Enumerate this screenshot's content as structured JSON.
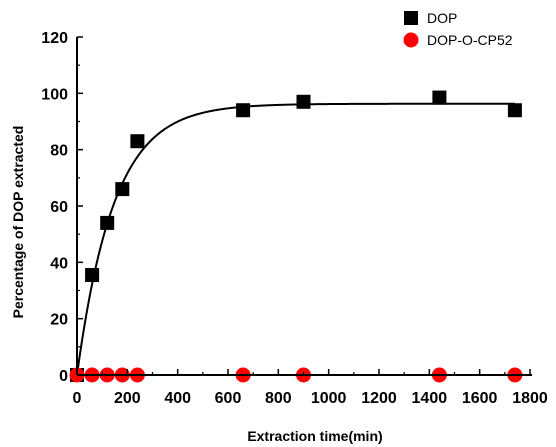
{
  "chart_data": {
    "type": "scatter",
    "title": "",
    "xlabel": "Extraction time(min)",
    "ylabel": "Percentage of DOP extracted",
    "xlim": [
      0,
      1800
    ],
    "ylim": [
      0,
      120
    ],
    "x_ticks": [
      0,
      200,
      400,
      600,
      800,
      1000,
      1200,
      1400,
      1600,
      1800
    ],
    "y_ticks": [
      0,
      20,
      40,
      60,
      80,
      100,
      120
    ],
    "grid": false,
    "legend_position": "top-right",
    "series": [
      {
        "name": "DOP",
        "marker": "square",
        "color": "#000000",
        "fit_line_color": "#000000",
        "fit_plateau": 96.3,
        "fit_rate": 0.0068,
        "points": [
          {
            "x": 0,
            "y": 0
          },
          {
            "x": 60,
            "y": 35.5
          },
          {
            "x": 120,
            "y": 54
          },
          {
            "x": 180,
            "y": 66
          },
          {
            "x": 240,
            "y": 83
          },
          {
            "x": 660,
            "y": 94
          },
          {
            "x": 900,
            "y": 97
          },
          {
            "x": 1440,
            "y": 98.5
          },
          {
            "x": 1740,
            "y": 94
          }
        ]
      },
      {
        "name": "DOP-O-CP52",
        "marker": "circle",
        "color": "#ff0000",
        "fit_line_color": "#e00000",
        "points": [
          {
            "x": 0,
            "y": 0
          },
          {
            "x": 60,
            "y": 0
          },
          {
            "x": 120,
            "y": 0
          },
          {
            "x": 180,
            "y": 0
          },
          {
            "x": 240,
            "y": 0
          },
          {
            "x": 660,
            "y": 0
          },
          {
            "x": 900,
            "y": 0
          },
          {
            "x": 1440,
            "y": 0
          },
          {
            "x": 1740,
            "y": 0
          }
        ]
      }
    ]
  }
}
